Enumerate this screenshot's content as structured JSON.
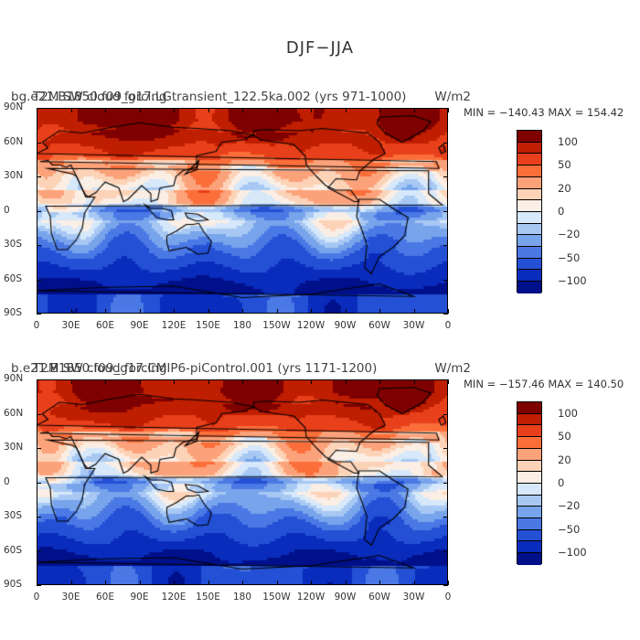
{
  "page_title": "DJF−JJA",
  "panels": [
    {
      "case_title": "bg.e21.B1850.f09_g17.LGtransient_122.5ka.002 (yrs 971-1000)",
      "var_title": "T2M SW cloud forcing",
      "units": "W/m2",
      "minmax": "MIN = −140.43  MAX = 154.42"
    },
    {
      "case_title": "b.e21.B1850.f09_g17.CMIP6-piControl.001 (yrs 1171-1200)",
      "var_title": "T2M SW cloud forcing",
      "units": "W/m2",
      "minmax": "MIN = −157.46  MAX = 140.50"
    }
  ],
  "axes": {
    "y_ticks": [
      "90N",
      "60N",
      "30N",
      "0",
      "30S",
      "60S",
      "90S"
    ],
    "x_ticks": [
      "0",
      "30E",
      "60E",
      "90E",
      "120E",
      "150E",
      "180",
      "150W",
      "120W",
      "90W",
      "60W",
      "30W",
      "0"
    ]
  },
  "colorbar": {
    "labels": [
      "100",
      "50",
      "20",
      "0",
      "−20",
      "−50",
      "−100"
    ],
    "colors": [
      "#7f0000",
      "#bf1e00",
      "#e8401a",
      "#fb6e3a",
      "#fca27a",
      "#fdd3b8",
      "#fbeee4",
      "#d6e8fa",
      "#a8c8f4",
      "#78a4ec",
      "#4a78e4",
      "#2350d4",
      "#0a2cbd",
      "#00108a"
    ]
  },
  "chart_data": {
    "type": "heatmap",
    "title": "DJF−JJA",
    "x_range": [
      "0",
      "0"
    ],
    "y_range": [
      "90S",
      "90N"
    ],
    "colorbar_levels": [
      -100,
      -50,
      -20,
      0,
      20,
      50,
      100
    ],
    "panels": [
      {
        "label": "bg.e21.B1850.f09_g17.LGtransient_122.5ka.002 (yrs 971-1000)",
        "min": -140.43,
        "max": 154.42
      },
      {
        "label": "b.e21.B1850.f09_g17.CMIP6-piControl.001 (yrs 1171-1200)",
        "min": -157.46,
        "max": 140.5
      }
    ]
  }
}
